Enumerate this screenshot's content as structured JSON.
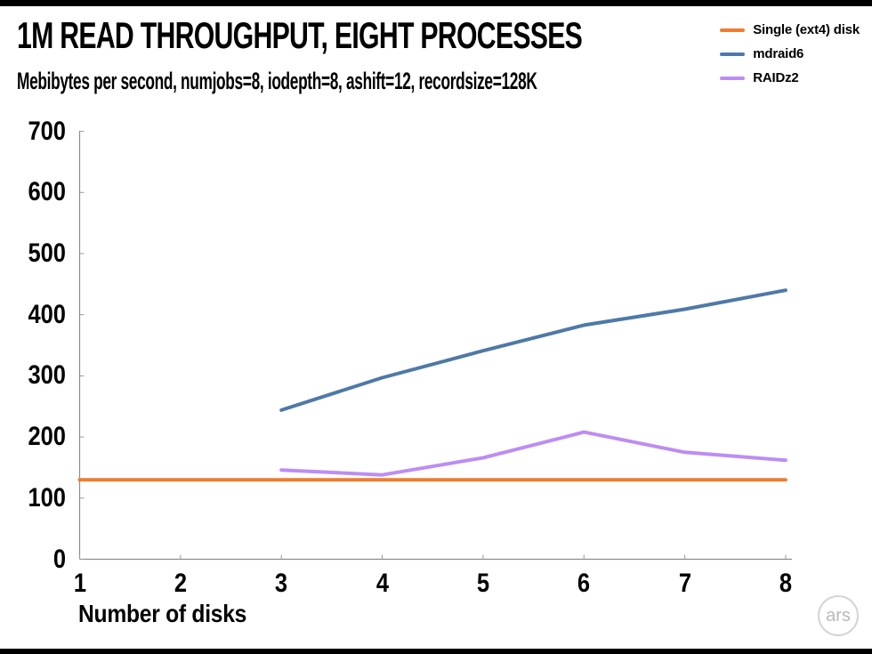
{
  "branding": {
    "logo_text": "ars"
  },
  "chart_data": {
    "type": "line",
    "title": "1M READ THROUGHPUT, EIGHT PROCESSES",
    "subtitle": "Mebibytes per second, numjobs=8, iodepth=8, ashift=12, recordsize=128K",
    "xlabel": "Number of disks",
    "ylabel": "",
    "x_ticks": [
      1,
      2,
      3,
      4,
      5,
      6,
      7,
      8
    ],
    "y_ticks": [
      0,
      100,
      200,
      300,
      400,
      500,
      600,
      700
    ],
    "xlim": [
      1,
      8
    ],
    "ylim": [
      0,
      700
    ],
    "grid": false,
    "legend_position": "top-right",
    "axis_color": "#8c8c8c",
    "series": [
      {
        "name": "Single (ext4) disk",
        "color": "#ED7D31",
        "x": [
          1,
          2,
          3,
          4,
          5,
          6,
          7,
          8
        ],
        "values": [
          130,
          130,
          130,
          130,
          130,
          130,
          130,
          130
        ]
      },
      {
        "name": "mdraid6",
        "color": "#4E79A7",
        "x": [
          3,
          4,
          5,
          6,
          7,
          8
        ],
        "values": [
          244,
          297,
          341,
          383,
          409,
          440
        ]
      },
      {
        "name": "RAIDz2",
        "color": "#BD8DF2",
        "x": [
          3,
          4,
          5,
          6,
          7,
          8
        ],
        "values": [
          146,
          138,
          166,
          208,
          175,
          162
        ]
      }
    ]
  }
}
